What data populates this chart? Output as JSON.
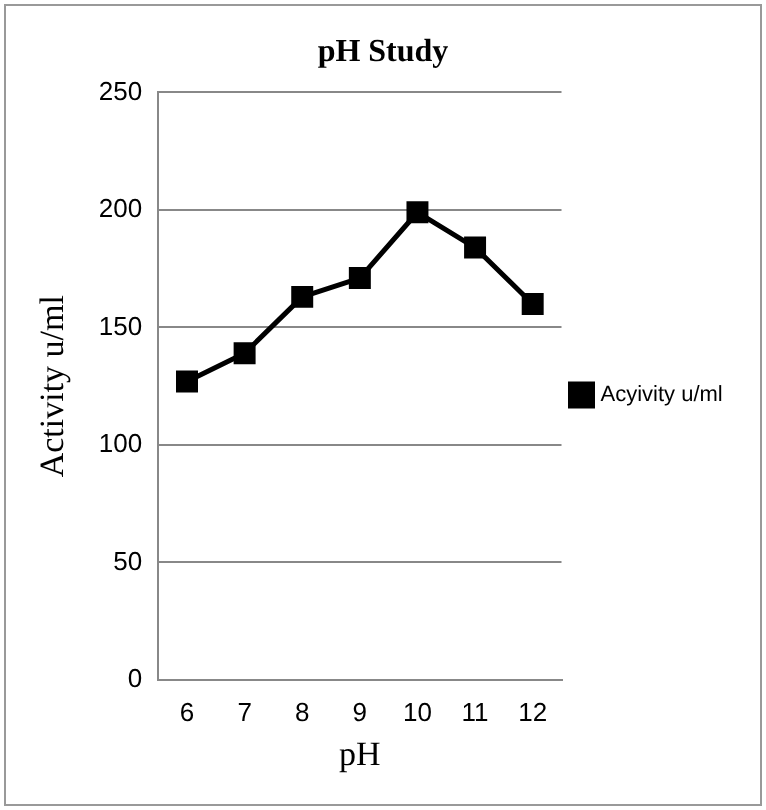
{
  "chart_data": {
    "type": "line",
    "title": "pH Study",
    "xlabel": "pH",
    "ylabel": "Activity u/ml",
    "categories": [
      "6",
      "7",
      "8",
      "9",
      "10",
      "11",
      "12"
    ],
    "series": [
      {
        "name": "Acyivity u/ml",
        "color": "#000000",
        "values": [
          127,
          139,
          163,
          171,
          199,
          184,
          160
        ]
      }
    ],
    "ylim": [
      0,
      250
    ],
    "yticks": [
      0,
      50,
      100,
      150,
      200,
      250
    ],
    "grid": "y",
    "legend": "right",
    "marker": "square",
    "line_style": "solid"
  }
}
